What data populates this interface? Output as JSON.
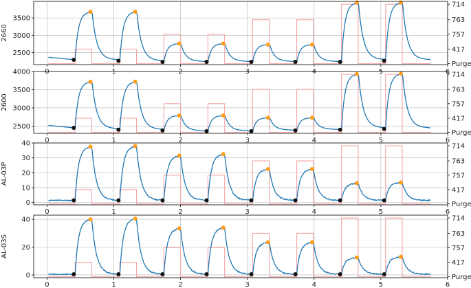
{
  "colors": {
    "sensor_line": "#1f77b4",
    "stimulus_line": "#f4a6a6",
    "peak_marker": "#ff9f1c",
    "baseline_marker": "#111111",
    "grid": "#b0b0b0",
    "axes": "#000000"
  },
  "chart_data": [
    {
      "type": "line",
      "ylabel": "2660",
      "x_ticks": [
        "0",
        "1",
        "2",
        "3",
        "4",
        "5",
        "6"
      ],
      "xlim": [
        -0.2,
        6.0
      ],
      "y_ticks": [
        2500,
        3000,
        3500
      ],
      "ylim": [
        2150,
        3980
      ],
      "y2_ticks": [
        "714",
        "763",
        "757",
        "417",
        "Purge"
      ],
      "baseline_values": [
        2290,
        2260,
        2230,
        2230,
        2230,
        2230,
        2230,
        2260
      ],
      "peak_values": [
        3680,
        3680,
        2760,
        2760,
        2730,
        2730,
        3950,
        3950
      ],
      "stimulus_levels": [
        "417",
        "417",
        "757",
        "757",
        "763",
        "763",
        "714",
        "714"
      ]
    },
    {
      "type": "line",
      "ylabel": "2600",
      "x_ticks": [
        "0",
        "1",
        "2",
        "3",
        "4",
        "5",
        "6"
      ],
      "xlim": [
        -0.2,
        6.0
      ],
      "y_ticks": [
        2500,
        3000,
        3500,
        4000
      ],
      "ylim": [
        2300,
        4000
      ],
      "y2_ticks": [
        "714",
        "763",
        "757",
        "417",
        "Purge"
      ],
      "baseline_values": [
        2450,
        2400,
        2380,
        2360,
        2360,
        2380,
        2400,
        2420
      ],
      "peak_values": [
        3720,
        3720,
        2790,
        2790,
        2730,
        2730,
        3930,
        3940
      ],
      "stimulus_levels": [
        "417",
        "417",
        "757",
        "757",
        "763",
        "763",
        "714",
        "714"
      ]
    },
    {
      "type": "line",
      "ylabel": "AL-03P",
      "x_ticks": [
        "0",
        "1",
        "2",
        "3",
        "4",
        "5",
        "6"
      ],
      "xlim": [
        -0.2,
        6.0
      ],
      "y_ticks": [
        0,
        10,
        20,
        30,
        40
      ],
      "ylim": [
        -1.5,
        40
      ],
      "y2_ticks": [
        "714",
        "763",
        "757",
        "417",
        "Purge"
      ],
      "baseline_values": [
        1.5,
        1.5,
        1.5,
        1.5,
        1.5,
        1.5,
        1.5,
        1.5
      ],
      "peak_values": [
        37.5,
        38,
        31.5,
        32.5,
        22.5,
        22.5,
        13,
        13.5
      ],
      "stimulus_levels": [
        "417",
        "417",
        "757",
        "757",
        "763",
        "763",
        "714",
        "714"
      ]
    },
    {
      "type": "line",
      "ylabel": "AL-03S",
      "x_ticks": [
        "0",
        "1",
        "2",
        "3",
        "4",
        "5",
        "6"
      ],
      "xlim": [
        -0.2,
        6.0
      ],
      "y_ticks": [
        0,
        20,
        40
      ],
      "ylim": [
        -2,
        43
      ],
      "y2_ticks": [
        "714",
        "763",
        "757",
        "417",
        "Purge"
      ],
      "baseline_values": [
        0.5,
        0.5,
        0.5,
        0.5,
        0.5,
        0.5,
        0.5,
        0.5
      ],
      "peak_values": [
        40,
        40.5,
        33.5,
        34,
        23.5,
        23.5,
        12.5,
        13
      ],
      "stimulus_levels": [
        "417",
        "417",
        "757",
        "757",
        "763",
        "763",
        "714",
        "714"
      ]
    }
  ],
  "pulse_starts": [
    0.42,
    1.09,
    1.75,
    2.41,
    3.08,
    3.74,
    4.41,
    5.07
  ],
  "pulse_ends": [
    0.67,
    1.34,
    2.0,
    2.66,
    3.33,
    3.99,
    4.66,
    5.32
  ],
  "series_end_x": 5.75
}
